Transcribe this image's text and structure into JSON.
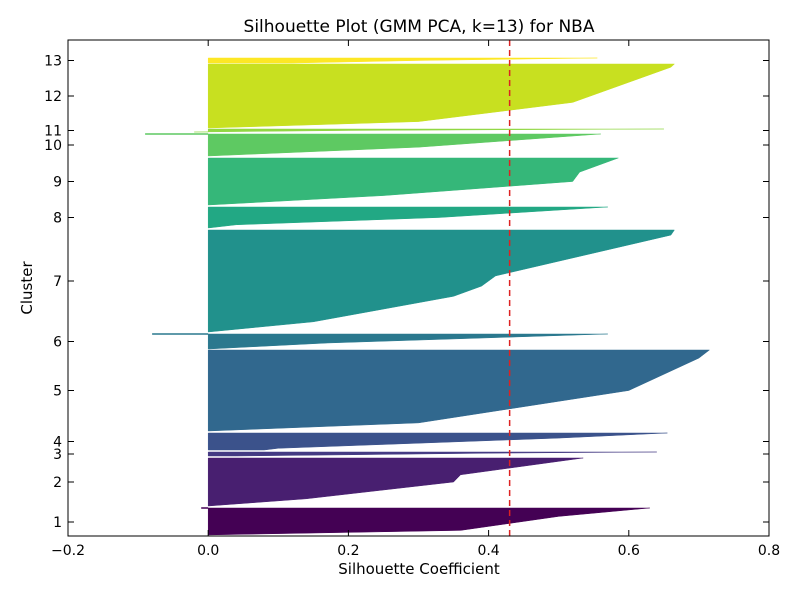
{
  "chart_data": {
    "type": "silhouette",
    "title": "Silhouette Plot (GMM PCA, k=13) for NBA",
    "xlabel": "Silhouette Coefficient",
    "ylabel": "Cluster",
    "xlim": [
      -0.2,
      0.8
    ],
    "x_ticks": [
      -0.2,
      0.0,
      0.2,
      0.4,
      0.6,
      0.8
    ],
    "x_tick_labels": [
      "−0.2",
      "0.0",
      "0.2",
      "0.4",
      "0.6",
      "0.8"
    ],
    "y_tick_labels": [
      "1",
      "2",
      "3",
      "4",
      "5",
      "6",
      "7",
      "8",
      "9",
      "10",
      "11",
      "12",
      "13"
    ],
    "average_silhouette": 0.43,
    "average_line_color": "#dd2222",
    "grid": false,
    "clusters": [
      {
        "label": "1",
        "color": "#440154",
        "profile": [
          [
            0.0,
            0.63
          ],
          [
            0.3,
            0.5
          ],
          [
            0.8,
            0.36
          ],
          [
            0.96,
            0.0
          ]
        ],
        "outlier": -0.01
      },
      {
        "label": "2",
        "color": "#481f70",
        "profile": [
          [
            0.0,
            0.535
          ],
          [
            0.35,
            0.36
          ],
          [
            0.5,
            0.35
          ],
          [
            0.85,
            0.14
          ],
          [
            1.0,
            0.0
          ]
        ]
      },
      {
        "label": "3",
        "color": "#443a83",
        "profile": [
          [
            0.0,
            0.64
          ],
          [
            0.3,
            0.4
          ],
          [
            0.7,
            0.2
          ],
          [
            1.0,
            0.04
          ]
        ]
      },
      {
        "label": "4",
        "color": "#3b528b",
        "profile": [
          [
            0.0,
            0.655
          ],
          [
            0.3,
            0.5
          ],
          [
            0.9,
            0.1
          ],
          [
            1.0,
            0.08
          ]
        ]
      },
      {
        "label": "5",
        "color": "#31688e",
        "profile": [
          [
            0.0,
            0.715
          ],
          [
            0.1,
            0.7
          ],
          [
            0.5,
            0.6
          ],
          [
            0.9,
            0.3
          ],
          [
            1.0,
            0.0
          ]
        ]
      },
      {
        "label": "6",
        "color": "#2a788e",
        "profile": [
          [
            0.0,
            0.57
          ],
          [
            0.6,
            0.17
          ],
          [
            1.0,
            0.0
          ]
        ],
        "outlier": -0.08
      },
      {
        "label": "7",
        "color": "#21918c",
        "profile": [
          [
            0.0,
            0.665
          ],
          [
            0.05,
            0.66
          ],
          [
            0.45,
            0.41
          ],
          [
            0.55,
            0.39
          ],
          [
            0.65,
            0.35
          ],
          [
            0.9,
            0.15
          ],
          [
            1.0,
            0.0
          ]
        ]
      },
      {
        "label": "8",
        "color": "#22a884",
        "profile": [
          [
            0.0,
            0.57
          ],
          [
            0.5,
            0.33
          ],
          [
            0.85,
            0.04
          ],
          [
            1.0,
            0.0
          ]
        ]
      },
      {
        "label": "9",
        "color": "#35b779",
        "profile": [
          [
            0.0,
            0.585
          ],
          [
            0.3,
            0.53
          ],
          [
            0.5,
            0.52
          ],
          [
            0.8,
            0.25
          ],
          [
            1.0,
            0.0
          ]
        ]
      },
      {
        "label": "10",
        "color": "#5ec962",
        "profile": [
          [
            0.0,
            0.56
          ],
          [
            0.6,
            0.3
          ],
          [
            1.0,
            0.0
          ]
        ],
        "outlier": -0.09
      },
      {
        "label": "11",
        "color": "#90d743",
        "profile": [
          [
            0.0,
            0.65
          ],
          [
            0.5,
            0.2
          ],
          [
            1.0,
            -0.02
          ]
        ]
      },
      {
        "label": "12",
        "color": "#c8e020",
        "profile": [
          [
            0.0,
            0.665
          ],
          [
            0.05,
            0.66
          ],
          [
            0.6,
            0.52
          ],
          [
            0.9,
            0.3
          ],
          [
            1.0,
            0.0
          ]
        ]
      },
      {
        "label": "13",
        "color": "#fde725",
        "profile": [
          [
            0.0,
            0.555
          ],
          [
            0.5,
            0.3
          ],
          [
            1.0,
            0.12
          ]
        ]
      }
    ]
  }
}
